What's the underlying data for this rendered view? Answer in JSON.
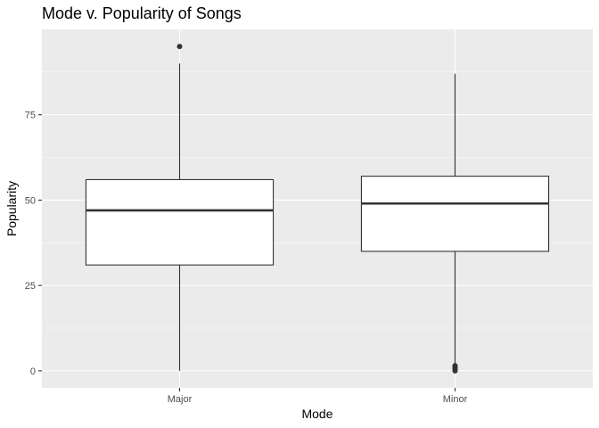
{
  "chart_data": {
    "type": "boxplot",
    "title": "Mode v. Popularity of Songs",
    "xlabel": "Mode",
    "ylabel": "Popularity",
    "categories": [
      "Major",
      "Minor"
    ],
    "ylim": [
      -5,
      100
    ],
    "y_ticks": [
      0,
      25,
      50,
      75
    ],
    "grid": true,
    "boxes": [
      {
        "category": "Major",
        "whisker_low": 0,
        "q1": 31,
        "median": 47,
        "q3": 56,
        "whisker_high": 90,
        "outliers": [
          95
        ]
      },
      {
        "category": "Minor",
        "whisker_low": 2,
        "q1": 35,
        "median": 49,
        "q3": 57,
        "whisker_high": 87,
        "outliers": [
          0,
          0.5,
          1,
          1.5
        ]
      }
    ]
  },
  "colors": {
    "panel_background": "#ebebeb",
    "grid_major": "#ffffff",
    "box_fill": "#ffffff",
    "box_stroke": "#333333",
    "tick_text": "#4d4d4d"
  }
}
